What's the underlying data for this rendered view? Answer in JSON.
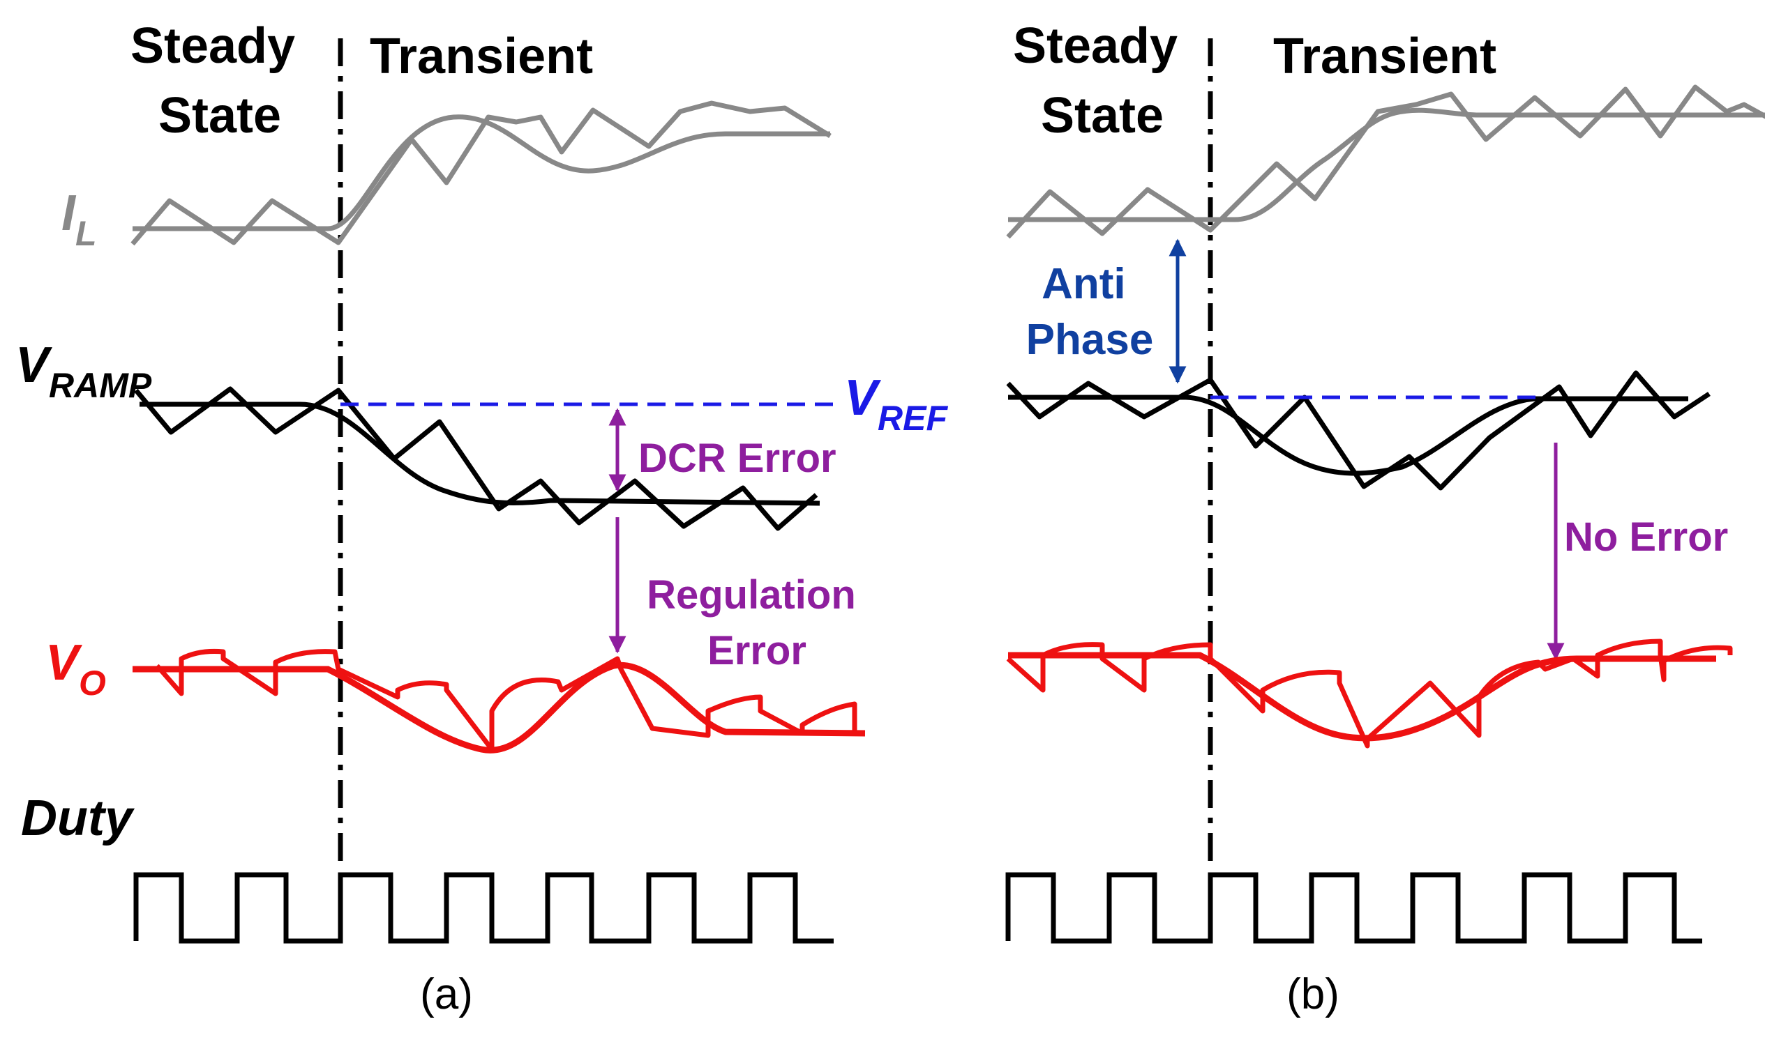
{
  "colors": {
    "inductor_current": "#888888",
    "ramp": "#000000",
    "reference": "#1a1ae6",
    "output": "#ee1111",
    "error_annotation": "#8e1e9e",
    "anti_phase_annotation": "#1040a0",
    "duty": "#000000",
    "divider": "#000000"
  },
  "panels": {
    "a": {
      "region_steady": "Steady\nState",
      "region_transient": "Transient",
      "signal_il": "I",
      "signal_il_sub": "L",
      "signal_vramp": "V",
      "signal_vramp_sub": "RAMP",
      "signal_vref": "V",
      "signal_vref_sub": "REF",
      "signal_vo": "V",
      "signal_vo_sub": "O",
      "signal_duty": "Duty",
      "annotation_dcr": "DCR Error",
      "annotation_regulation": "Regulation\nError",
      "caption": "(a)"
    },
    "b": {
      "region_steady": "Steady\nState",
      "region_transient": "Transient",
      "annotation_anti_phase": "Anti\nPhase",
      "annotation_no_error": "No Error",
      "caption": "(b)"
    }
  }
}
